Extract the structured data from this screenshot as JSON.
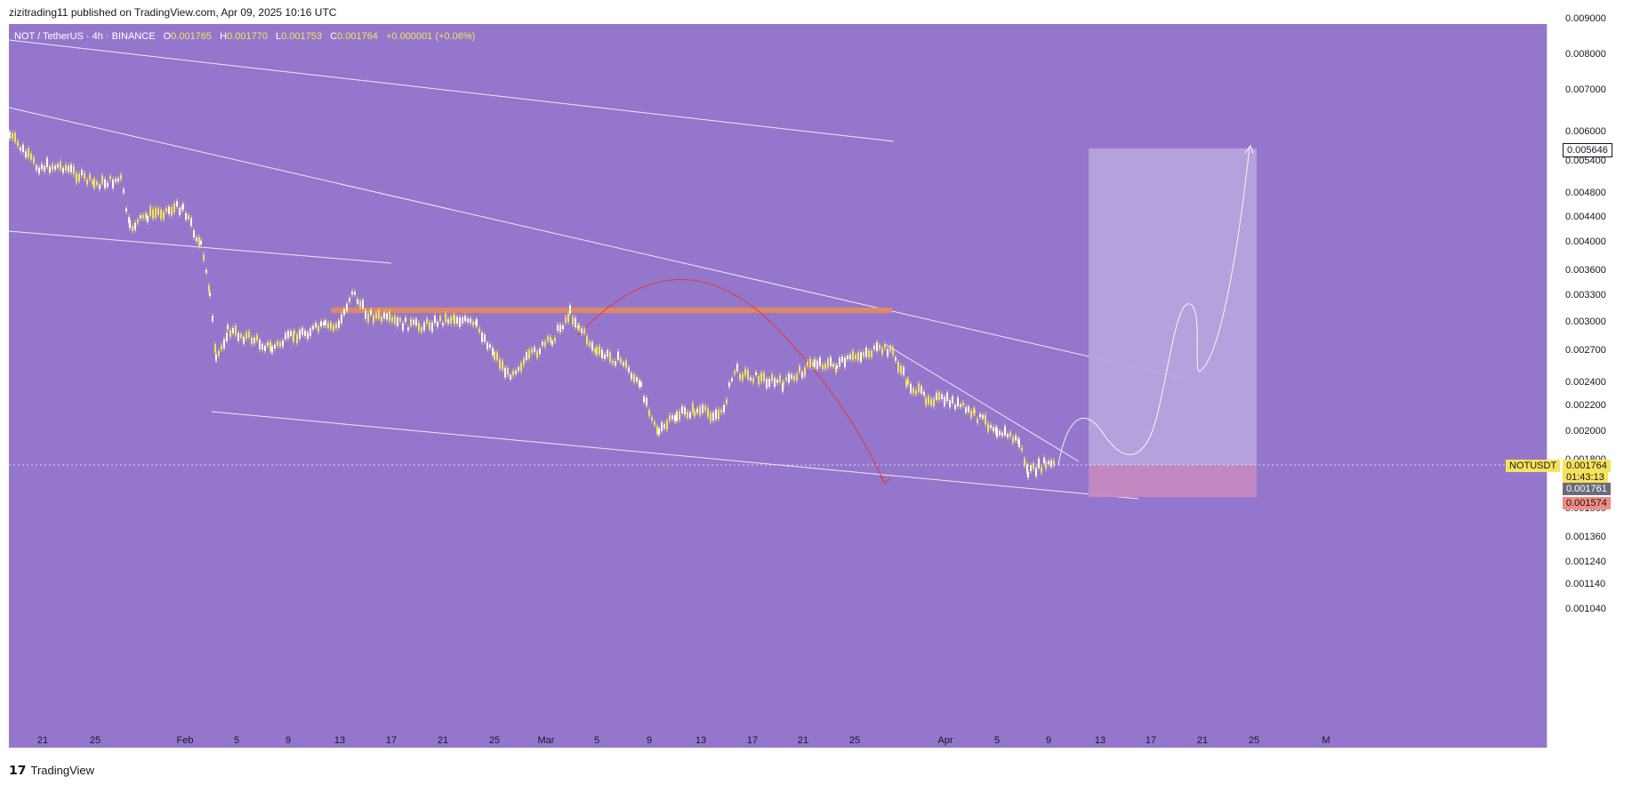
{
  "header": {
    "published": "zizitrading11 published on TradingView.com, Apr 09, 2025 10:16 UTC"
  },
  "legend": {
    "symbol": "NOT / TetherUS · 4h · BINANCE",
    "open_label": "O",
    "open": "0.001765",
    "high_label": "H",
    "high": "0.001770",
    "low_label": "L",
    "low": "0.001753",
    "close_label": "C",
    "close": "0.001764",
    "change": "+0.000001 (+0.06%)"
  },
  "price_axis": {
    "labels": [
      "0.009000",
      "0.008000",
      "0.007000",
      "0.006000",
      "0.005400",
      "0.004800",
      "0.004400",
      "0.004000",
      "0.003600",
      "0.003300",
      "0.003000",
      "0.002700",
      "0.002400",
      "0.002200",
      "0.002000",
      "0.001800",
      "0.001500",
      "0.001360",
      "0.001240",
      "0.001140",
      "0.001040"
    ],
    "target_badge": "0.005646",
    "symbol_badge": "NOTUSDT",
    "last_price_badge": "0.001764",
    "countdown": "01:43:13",
    "prev_close_badge": "0.001761",
    "stop_badge": "0.001574"
  },
  "time_axis": {
    "labels": [
      "21",
      "25",
      "Feb",
      "5",
      "9",
      "13",
      "17",
      "21",
      "25",
      "Mar",
      "5",
      "9",
      "13",
      "17",
      "21",
      "25",
      "Apr",
      "5",
      "9",
      "13",
      "17",
      "21",
      "25",
      "M"
    ]
  },
  "colors": {
    "background": "#9477cc",
    "candle": "#f7e25b",
    "resistance_zone": "#e8895a",
    "arc": "#e53935",
    "target_zone": "#b8a5de",
    "stop_zone": "#c58ac0"
  },
  "footer": {
    "brand": "TradingView",
    "icon": "tradingview-logo-icon"
  }
}
